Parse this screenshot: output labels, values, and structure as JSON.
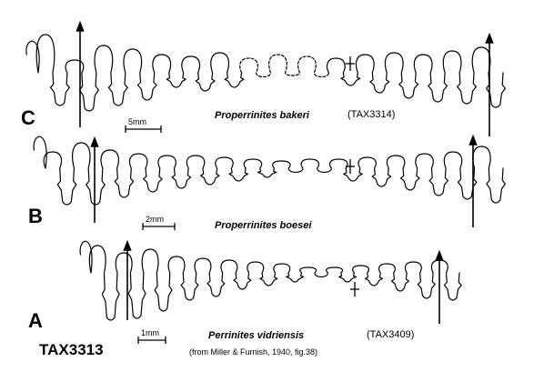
{
  "figure_label": "TAX3313",
  "panels": [
    {
      "letter": "C",
      "species": "Properrinites bakeri",
      "catalog": "(TAX3314)",
      "scale": "5mm"
    },
    {
      "letter": "B",
      "species": "Properrinites boesei",
      "catalog": "",
      "scale": "2mm"
    },
    {
      "letter": "A",
      "species": "Perrinites vidriensis",
      "catalog": "(TAX3409)",
      "scale": "1mm",
      "citation": "(from Miller & Furnish, 1940, fig.38)"
    }
  ],
  "colors": {
    "ink": "#000000",
    "background": "#ffffff"
  }
}
